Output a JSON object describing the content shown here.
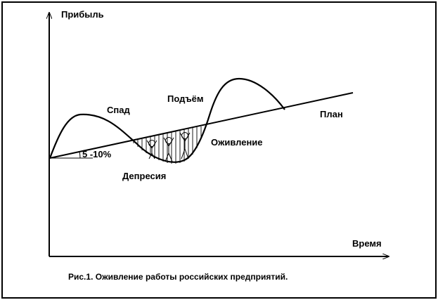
{
  "axes": {
    "y_label": "Прибыль",
    "x_label": "Время"
  },
  "stages": {
    "decline": "Спад",
    "depression": "Депресия",
    "revival": "Оживление",
    "rise": "Подъём"
  },
  "plan_label": "План",
  "angle_label": "5 -10%",
  "caption": "Рис.1. Оживление работы российских предприятий.",
  "colors": {
    "line": "#000000",
    "background": "#ffffff"
  }
}
